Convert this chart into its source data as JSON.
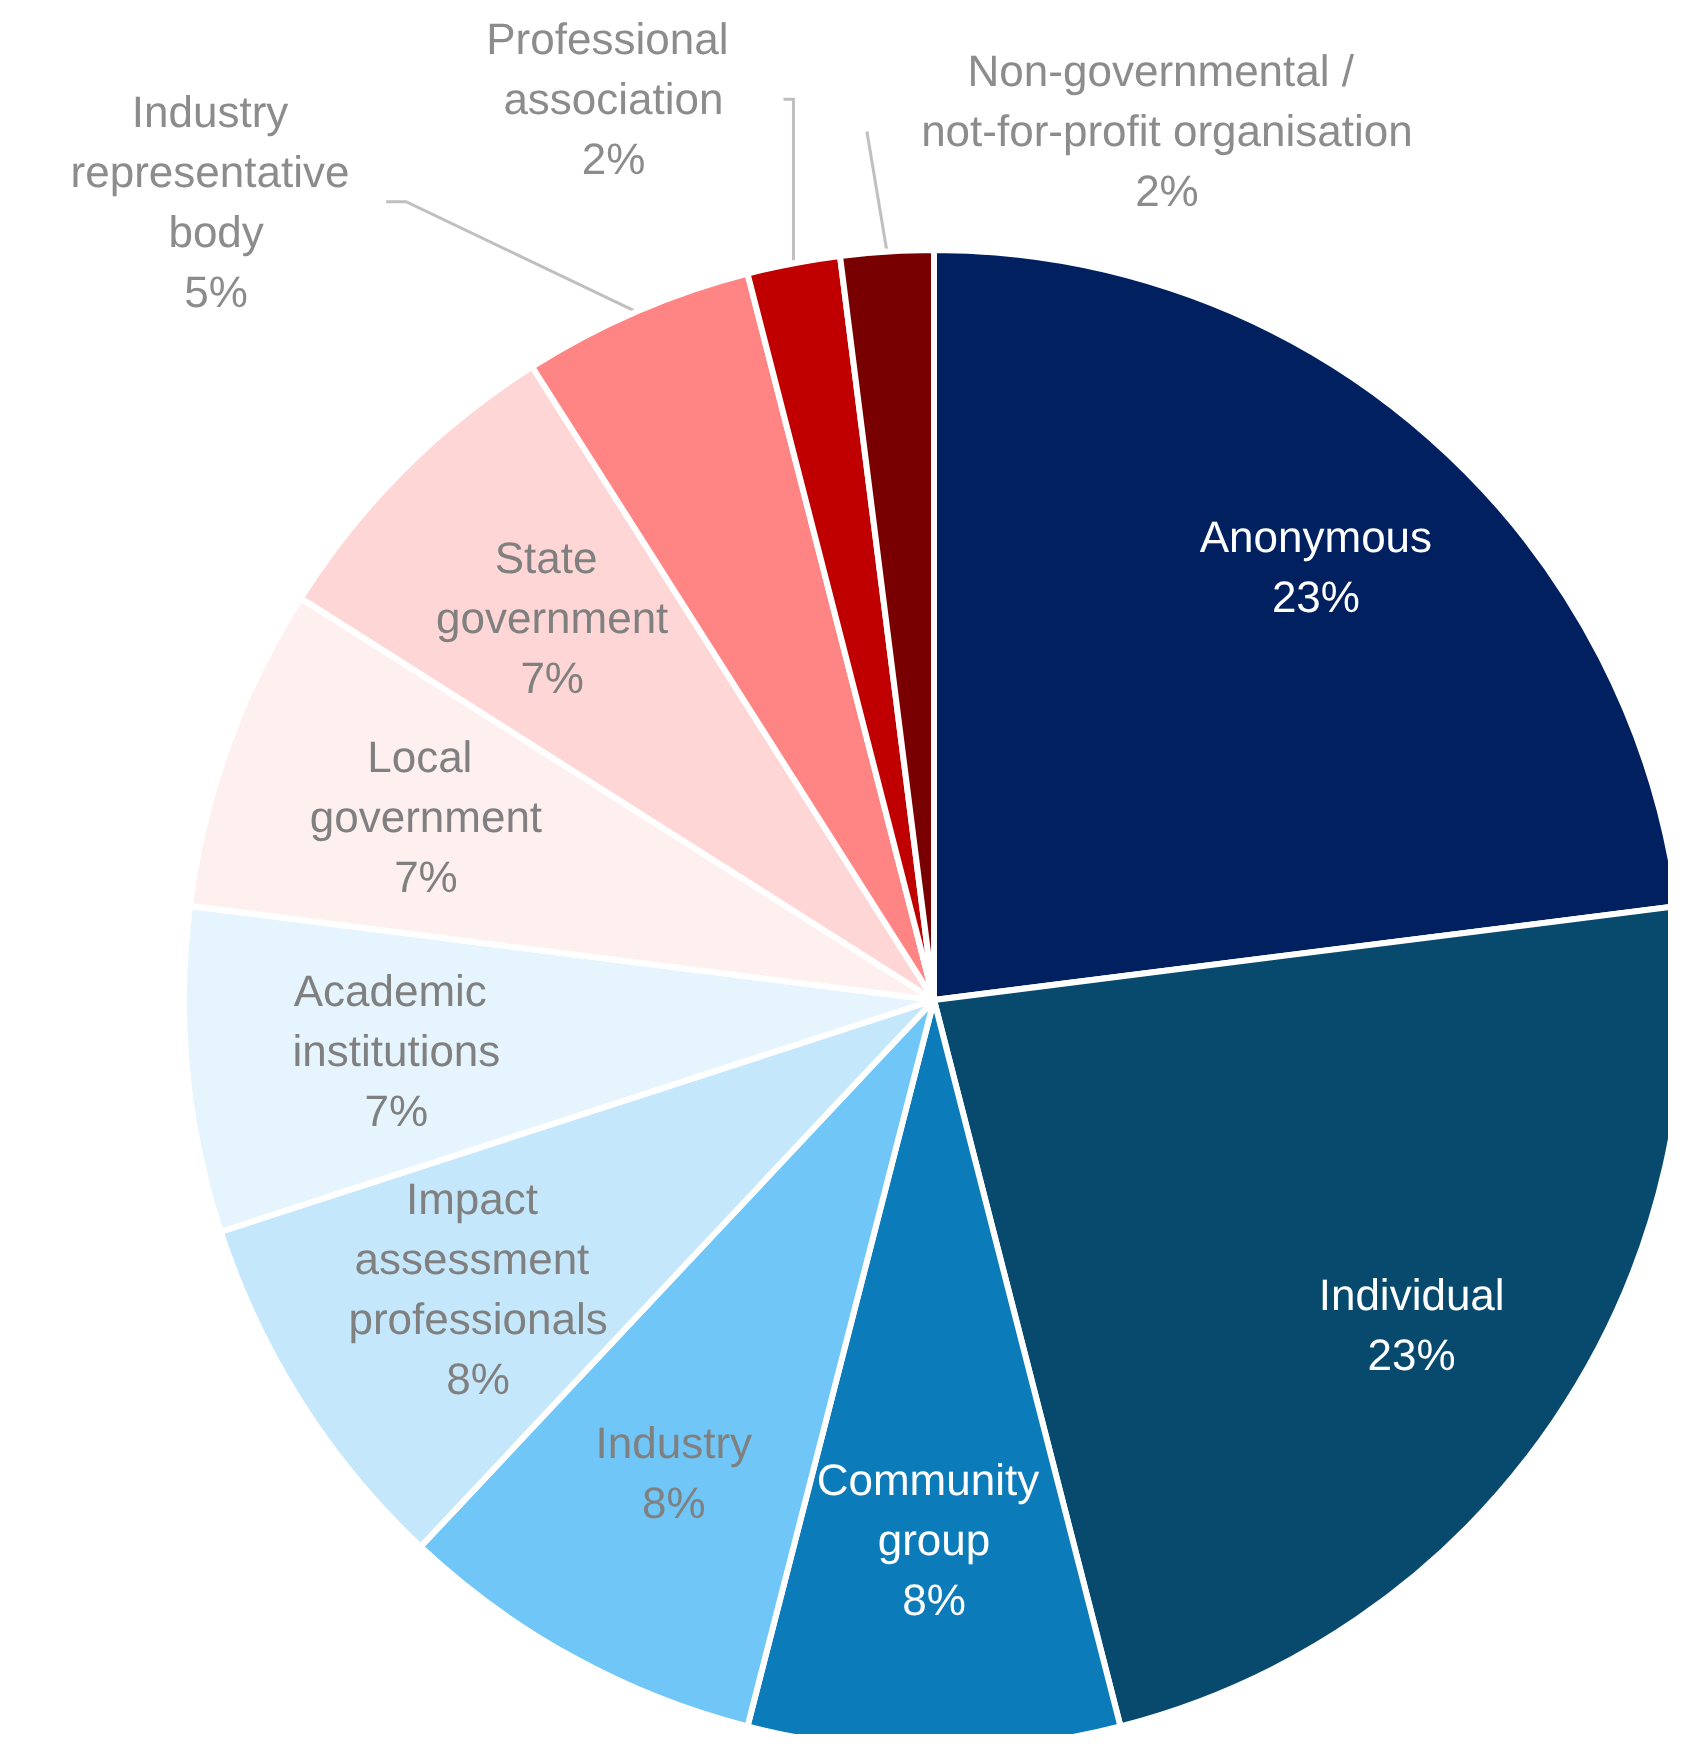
{
  "chart_data": {
    "type": "pie",
    "categories": [
      "Anonymous",
      "Individual",
      "Community group",
      "Industry",
      "Impact assessment professionals",
      "Academic institutions",
      "Local government",
      "State government",
      "Industry representative body",
      "Professional association",
      "Non-governmental / not-for-profit organisation"
    ],
    "values": [
      23,
      23,
      8,
      8,
      8,
      7,
      7,
      7,
      5,
      2,
      2
    ],
    "value_labels": [
      "23%",
      "23%",
      "8%",
      "8%",
      "8%",
      "7%",
      "7%",
      "7%",
      "5%",
      "2%",
      "2%"
    ],
    "colors": [
      "#002060",
      "#074a6e",
      "#0c7bba",
      "#6fc6f7",
      "#c5e7fb",
      "#e6f5fd",
      "#fff0f0",
      "#ffd6d6",
      "#ff8585",
      "#c00000",
      "#780000"
    ],
    "legend": false
  }
}
